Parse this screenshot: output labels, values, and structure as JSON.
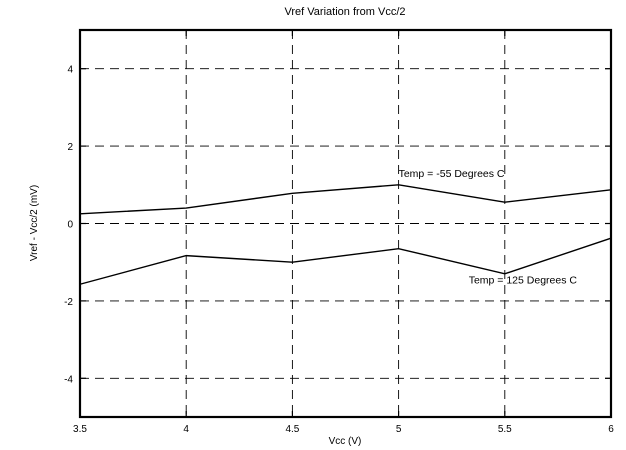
{
  "chart_data": {
    "type": "line",
    "title": "Vref Variation from Vcc/2",
    "xlabel": "Vcc (V)",
    "ylabel": "Vref - Vcc/2 (mV)",
    "xlim": [
      3.5,
      6
    ],
    "ylim": [
      -5,
      5
    ],
    "xticks": [
      3.5,
      4,
      4.5,
      5,
      5.5,
      6
    ],
    "xtick_labels": [
      "3.5",
      "4",
      "4.5",
      "5",
      "5.5",
      "6"
    ],
    "yticks": [
      -4,
      -2,
      0,
      2,
      4
    ],
    "ytick_labels": [
      "-4",
      "-2",
      "0",
      "2",
      "4"
    ],
    "grid": true,
    "x": [
      3.5,
      4,
      4.5,
      5,
      5.5,
      6
    ],
    "series": [
      {
        "values": [
          0.25,
          0.4,
          0.78,
          1.0,
          0.55,
          0.87
        ]
      },
      {
        "values": [
          -1.57,
          -0.83,
          -1.0,
          -0.65,
          -1.3,
          -0.38
        ]
      }
    ],
    "annotations": [
      {
        "text": "Temp = -55 Degrees C",
        "x": 5.0,
        "y": 1.2
      },
      {
        "text": "Temp = 125 Degrees C",
        "x": 5.33,
        "y": -1.55
      }
    ]
  }
}
